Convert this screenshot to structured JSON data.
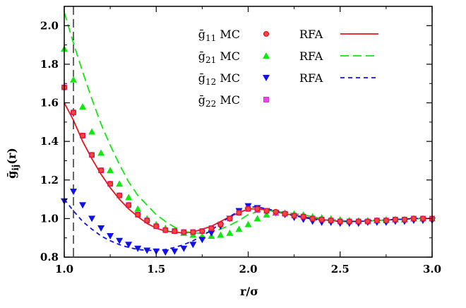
{
  "chart_data": {
    "type": "line",
    "xlabel": "r/σ",
    "ylabel_main": "ḡ",
    "ylabel_sub": "ij",
    "ylabel_tail": "(r)",
    "xlim": [
      1.0,
      3.0
    ],
    "ylim": [
      0.8,
      2.1
    ],
    "xticks": [
      "1.0",
      "1.5",
      "2.0",
      "2.5",
      "3.0"
    ],
    "yticks": [
      "0.8",
      "1.0",
      "1.2",
      "1.4",
      "1.6",
      "1.8",
      "2.0"
    ],
    "vline_x": 1.05,
    "colors": {
      "red": "#e8141b",
      "green": "#10e810",
      "blue": "#1010e8",
      "magenta": "#f040f0",
      "red_marker_fill": "#f04848"
    },
    "legend": [
      {
        "label_main": "ḡ",
        "label_sub": "11",
        "label_tail": " MC",
        "marker": "circle",
        "color": "red",
        "rfa_label": "RFA",
        "rfa_style": "solid"
      },
      {
        "label_main": "ḡ",
        "label_sub": "21",
        "label_tail": " MC",
        "marker": "triangle-up",
        "color": "green",
        "rfa_label": "RFA",
        "rfa_style": "long-dash"
      },
      {
        "label_main": "ḡ",
        "label_sub": "12",
        "label_tail": " MC",
        "marker": "triangle-down",
        "color": "blue",
        "rfa_label": "RFA",
        "rfa_style": "short-dash"
      },
      {
        "label_main": "ḡ",
        "label_sub": "22",
        "label_tail": " MC",
        "marker": "square",
        "color": "magenta",
        "rfa_label": "",
        "rfa_style": "none"
      }
    ],
    "rfa_series": [
      {
        "name": "RFA 11",
        "color": "red",
        "style": "solid",
        "x": [
          1.0,
          1.05,
          1.1,
          1.15,
          1.2,
          1.25,
          1.3,
          1.35,
          1.4,
          1.45,
          1.5,
          1.55,
          1.6,
          1.65,
          1.7,
          1.75,
          1.8,
          1.85,
          1.9,
          1.95,
          2.0,
          2.05,
          2.1,
          2.15,
          2.2,
          2.3,
          2.4,
          2.5,
          2.6,
          2.7,
          2.8,
          2.9,
          3.0
        ],
        "y": [
          1.6,
          1.51,
          1.4,
          1.31,
          1.23,
          1.16,
          1.1,
          1.05,
          1.01,
          0.975,
          0.95,
          0.935,
          0.93,
          0.925,
          0.93,
          0.945,
          0.96,
          0.985,
          1.01,
          1.03,
          1.05,
          1.05,
          1.045,
          1.035,
          1.025,
          1.01,
          0.995,
          0.985,
          0.985,
          0.99,
          0.995,
          1.0,
          1.0
        ]
      },
      {
        "name": "RFA 21",
        "color": "green",
        "style": "long-dash",
        "x": [
          1.0,
          1.05,
          1.1,
          1.15,
          1.2,
          1.25,
          1.3,
          1.35,
          1.4,
          1.45,
          1.5,
          1.55,
          1.6,
          1.65,
          1.7,
          1.75,
          1.8,
          1.85,
          1.9,
          1.95,
          2.0,
          2.05,
          2.1,
          2.15,
          2.2,
          2.3,
          2.4,
          2.5,
          2.6,
          2.7,
          2.8,
          2.9,
          3.0
        ],
        "y": [
          2.07,
          1.91,
          1.76,
          1.62,
          1.49,
          1.38,
          1.28,
          1.19,
          1.12,
          1.07,
          1.02,
          0.985,
          0.955,
          0.935,
          0.925,
          0.925,
          0.93,
          0.945,
          0.965,
          0.99,
          1.02,
          1.035,
          1.04,
          1.04,
          1.03,
          1.02,
          1.0,
          0.99,
          0.985,
          0.99,
          0.995,
          1.0,
          1.0
        ]
      },
      {
        "name": "RFA 12",
        "color": "blue",
        "style": "short-dash",
        "x": [
          1.0,
          1.05,
          1.1,
          1.15,
          1.2,
          1.25,
          1.3,
          1.35,
          1.4,
          1.45,
          1.5,
          1.55,
          1.6,
          1.65,
          1.7,
          1.75,
          1.8,
          1.85,
          1.9,
          1.95,
          2.0,
          2.05,
          2.1,
          2.15,
          2.2,
          2.3,
          2.4,
          2.5,
          2.6,
          2.7,
          2.8,
          2.9,
          3.0
        ],
        "y": [
          1.1,
          1.04,
          0.985,
          0.945,
          0.91,
          0.885,
          0.865,
          0.85,
          0.84,
          0.835,
          0.835,
          0.84,
          0.85,
          0.865,
          0.885,
          0.91,
          0.94,
          0.975,
          1.01,
          1.04,
          1.06,
          1.06,
          1.05,
          1.04,
          1.025,
          1.005,
          0.99,
          0.985,
          0.985,
          0.99,
          0.995,
          1.0,
          1.0
        ]
      }
    ],
    "mc_series": [
      {
        "name": "ḡ11 MC",
        "marker": "circle",
        "color": "red",
        "x": [
          1.0,
          1.05,
          1.1,
          1.15,
          1.2,
          1.25,
          1.3,
          1.35,
          1.4,
          1.45,
          1.5,
          1.55,
          1.6,
          1.65,
          1.7,
          1.75,
          1.8,
          1.85,
          1.9,
          1.95,
          2.0,
          2.05,
          2.1,
          2.15,
          2.2,
          2.25,
          2.3,
          2.35,
          2.4,
          2.45,
          2.5,
          2.55,
          2.6,
          2.65,
          2.7,
          2.75,
          2.8,
          2.85,
          2.9,
          2.95,
          3.0
        ],
        "y": [
          1.68,
          1.55,
          1.43,
          1.33,
          1.25,
          1.18,
          1.12,
          1.07,
          1.02,
          0.99,
          0.96,
          0.94,
          0.935,
          0.93,
          0.93,
          0.935,
          0.95,
          0.97,
          1.0,
          1.03,
          1.05,
          1.05,
          1.04,
          1.035,
          1.025,
          1.015,
          1.01,
          1.0,
          0.995,
          0.99,
          0.985,
          0.985,
          0.985,
          0.985,
          0.99,
          0.99,
          0.995,
          0.995,
          1.0,
          1.0,
          1.0
        ]
      },
      {
        "name": "ḡ21 MC",
        "marker": "triangle-up",
        "color": "green",
        "x": [
          1.0,
          1.05,
          1.1,
          1.15,
          1.2,
          1.25,
          1.3,
          1.35,
          1.4,
          1.45,
          1.5,
          1.55,
          1.6,
          1.65,
          1.7,
          1.75,
          1.8,
          1.85,
          1.9,
          1.95,
          2.0,
          2.05,
          2.1,
          2.15,
          2.2,
          2.25,
          2.3,
          2.35,
          2.4,
          2.45,
          2.5,
          2.55,
          2.6,
          2.65,
          2.7,
          2.75,
          2.8,
          2.85,
          2.9,
          2.95,
          3.0
        ],
        "y": [
          1.88,
          1.72,
          1.58,
          1.45,
          1.34,
          1.25,
          1.18,
          1.11,
          1.05,
          1.0,
          0.97,
          0.95,
          0.935,
          0.925,
          0.915,
          0.91,
          0.91,
          0.915,
          0.925,
          0.945,
          0.97,
          1.0,
          1.02,
          1.03,
          1.03,
          1.025,
          1.02,
          1.01,
          1.005,
          1.0,
          0.995,
          0.99,
          0.99,
          0.99,
          0.99,
          0.995,
          0.995,
          0.995,
          1.0,
          1.0,
          1.0
        ]
      },
      {
        "name": "ḡ12 MC",
        "marker": "triangle-down",
        "color": "blue",
        "x": [
          1.0,
          1.05,
          1.1,
          1.15,
          1.2,
          1.25,
          1.3,
          1.35,
          1.4,
          1.45,
          1.5,
          1.55,
          1.6,
          1.65,
          1.7,
          1.75,
          1.8,
          1.85,
          1.9,
          1.95,
          2.0,
          2.05,
          2.1,
          2.15,
          2.2,
          2.25,
          2.3,
          2.35,
          2.4,
          2.45,
          2.5,
          2.55,
          2.6,
          2.65,
          2.7,
          2.75,
          2.8,
          2.85,
          2.9,
          2.95,
          3.0
        ],
        "y": [
          1.09,
          1.14,
          1.07,
          1.0,
          0.95,
          0.91,
          0.885,
          0.865,
          0.845,
          0.835,
          0.83,
          0.825,
          0.83,
          0.845,
          0.865,
          0.89,
          0.925,
          0.96,
          1.0,
          1.04,
          1.065,
          1.055,
          1.04,
          1.03,
          1.02,
          1.005,
          0.995,
          0.985,
          0.98,
          0.98,
          0.975,
          0.975,
          0.975,
          0.98,
          0.98,
          0.98,
          0.985,
          0.985,
          0.99,
          0.99,
          0.99
        ]
      },
      {
        "name": "ḡ22 MC",
        "marker": "square",
        "color": "magenta",
        "x": [
          1.0,
          1.05,
          1.1,
          1.15,
          1.2,
          1.25,
          1.3,
          1.35,
          1.4,
          1.45,
          1.5,
          1.55,
          1.6,
          1.65,
          1.7,
          1.75,
          1.8,
          1.85,
          1.9,
          1.95,
          2.0,
          2.05,
          2.1,
          2.15,
          2.2,
          2.25,
          2.3,
          2.35,
          2.4,
          2.45,
          2.5,
          2.55,
          2.6,
          2.65,
          2.7,
          2.75,
          2.8,
          2.85,
          2.9,
          2.95,
          3.0
        ],
        "y": [
          1.68,
          1.55,
          1.43,
          1.33,
          1.25,
          1.18,
          1.12,
          1.07,
          1.02,
          0.99,
          0.96,
          0.94,
          0.935,
          0.93,
          0.93,
          0.935,
          0.95,
          0.97,
          1.0,
          1.03,
          1.05,
          1.045,
          1.04,
          1.03,
          1.025,
          1.015,
          1.01,
          1.0,
          0.995,
          0.99,
          0.985,
          0.985,
          0.985,
          0.985,
          0.99,
          0.99,
          0.995,
          0.995,
          1.0,
          1.0,
          1.0
        ]
      }
    ]
  }
}
